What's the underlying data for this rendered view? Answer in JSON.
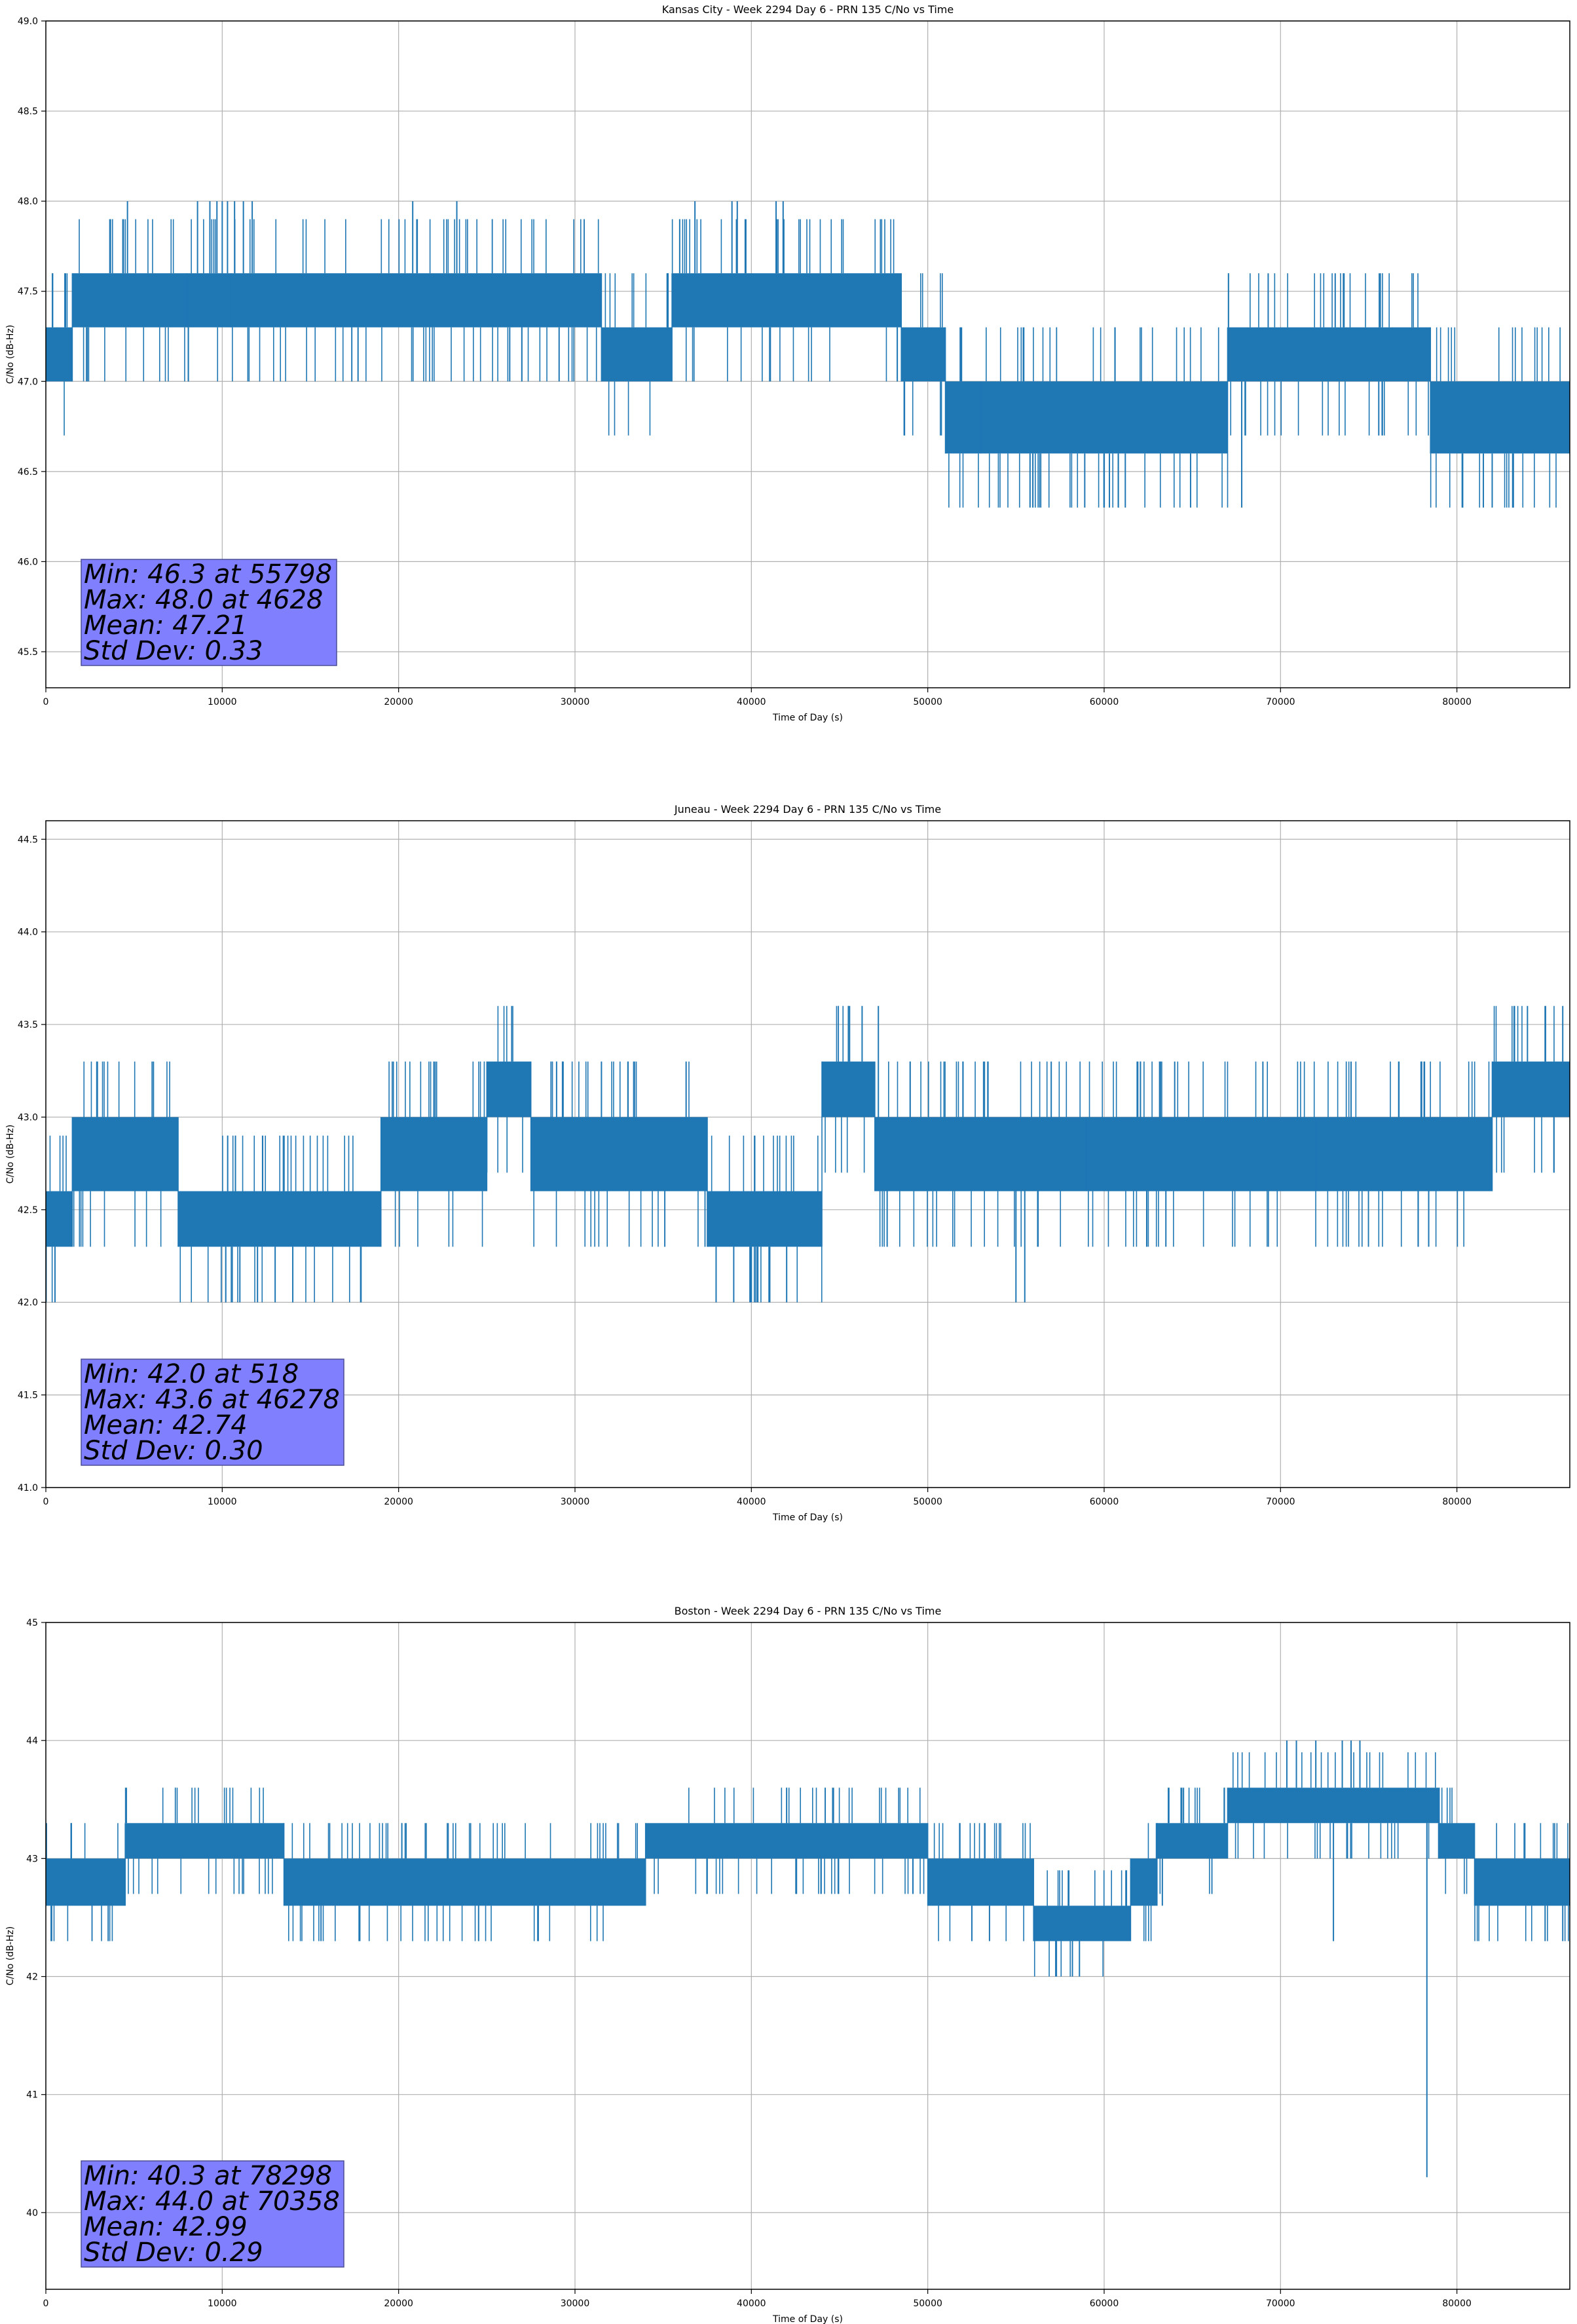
{
  "series_color": "#1f77b4",
  "stats_box_color": "#8080ff",
  "chart_data": [
    {
      "type": "line",
      "title": "Kansas City - Week 2294 Day 6 - PRN 135 C/No vs Time",
      "xlabel": "Time of Day (s)",
      "ylabel": "C/No (dB-Hz)",
      "xlim": [
        0,
        86400
      ],
      "ylim": [
        45.3,
        49.0
      ],
      "xticks": [
        0,
        10000,
        20000,
        30000,
        40000,
        50000,
        60000,
        70000,
        80000
      ],
      "yticks": [
        "45.5",
        "46.0",
        "46.5",
        "47.0",
        "47.5",
        "48.0",
        "48.5",
        "49.0"
      ],
      "grid": true,
      "quantum": 0.3,
      "stats": [
        "Min: 46.3 at 55798",
        "Max: 48.0 at 4628",
        "Mean: 47.21",
        "Std Dev: 0.33"
      ],
      "segments": [
        {
          "x": [
            0,
            1500
          ],
          "levels": [
            47.0,
            47.3
          ]
        },
        {
          "x": [
            1500,
            8000
          ],
          "levels": [
            47.3,
            47.6
          ]
        },
        {
          "x": [
            8000,
            10500
          ],
          "levels": [
            47.3,
            47.6
          ]
        },
        {
          "x": [
            10500,
            27000
          ],
          "levels": [
            47.3,
            47.6
          ]
        },
        {
          "x": [
            27000,
            31500
          ],
          "levels": [
            47.3,
            47.6
          ]
        },
        {
          "x": [
            31500,
            35500
          ],
          "levels": [
            47.0,
            47.3
          ]
        },
        {
          "x": [
            35500,
            48500
          ],
          "levels": [
            47.3,
            47.6
          ]
        },
        {
          "x": [
            48500,
            51000
          ],
          "levels": [
            47.0,
            47.3
          ]
        },
        {
          "x": [
            51000,
            53000
          ],
          "levels": [
            46.6,
            47.0
          ]
        },
        {
          "x": [
            53000,
            67000
          ],
          "levels": [
            46.6,
            47.0
          ]
        },
        {
          "x": [
            67000,
            78500
          ],
          "levels": [
            47.0,
            47.3
          ]
        },
        {
          "x": [
            78500,
            86400
          ],
          "levels": [
            46.6,
            47.0
          ]
        }
      ],
      "spikes": [
        [
          4628,
          48.0
        ],
        [
          8600,
          48.0
        ],
        [
          9300,
          48.0
        ],
        [
          9700,
          48.0
        ],
        [
          10000,
          48.0
        ],
        [
          10300,
          48.0
        ],
        [
          10700,
          48.0
        ],
        [
          11200,
          48.0
        ],
        [
          11700,
          48.0
        ],
        [
          20800,
          48.0
        ],
        [
          23300,
          48.0
        ],
        [
          36800,
          48.0
        ],
        [
          38900,
          48.0
        ],
        [
          39200,
          48.0
        ],
        [
          41400,
          48.0
        ],
        [
          41800,
          48.0
        ],
        [
          17700,
          47.0
        ],
        [
          26300,
          47.0
        ],
        [
          29100,
          47.0
        ],
        [
          55798,
          46.3
        ],
        [
          58900,
          46.3
        ],
        [
          60300,
          46.3
        ],
        [
          60800,
          46.3
        ],
        [
          61200,
          46.3
        ],
        [
          64900,
          46.3
        ],
        [
          67800,
          46.3
        ],
        [
          80300,
          46.3
        ],
        [
          81500,
          46.3
        ],
        [
          82000,
          46.3
        ],
        [
          83200,
          46.3
        ],
        [
          69300,
          47.6
        ],
        [
          73100,
          47.6
        ],
        [
          73600,
          47.6
        ],
        [
          75600,
          47.6
        ]
      ]
    },
    {
      "type": "line",
      "title": "Juneau - Week 2294 Day 6 - PRN 135 C/No vs Time",
      "xlabel": "Time of Day (s)",
      "ylabel": "C/No (dB-Hz)",
      "xlim": [
        0,
        86400
      ],
      "ylim": [
        41.0,
        44.6
      ],
      "xticks": [
        0,
        10000,
        20000,
        30000,
        40000,
        50000,
        60000,
        70000,
        80000
      ],
      "yticks": [
        "41.0",
        "41.5",
        "42.0",
        "42.5",
        "43.0",
        "43.5",
        "44.0",
        "44.5"
      ],
      "grid": true,
      "quantum": 0.3,
      "stats": [
        "Min: 42.0 at 518",
        "Max: 43.6 at 46278",
        "Mean: 42.74",
        "Std Dev: 0.30"
      ],
      "segments": [
        {
          "x": [
            0,
            1500
          ],
          "levels": [
            42.3,
            42.6
          ]
        },
        {
          "x": [
            1500,
            7500
          ],
          "levels": [
            42.6,
            43.0
          ]
        },
        {
          "x": [
            7500,
            19000
          ],
          "levels": [
            42.3,
            42.6
          ]
        },
        {
          "x": [
            19000,
            25000
          ],
          "levels": [
            42.6,
            43.0
          ]
        },
        {
          "x": [
            25000,
            27500
          ],
          "levels": [
            43.0,
            43.3
          ]
        },
        {
          "x": [
            27500,
            37500
          ],
          "levels": [
            42.6,
            43.0
          ]
        },
        {
          "x": [
            37500,
            44000
          ],
          "levels": [
            42.3,
            42.6
          ]
        },
        {
          "x": [
            44000,
            47000
          ],
          "levels": [
            43.0,
            43.3
          ]
        },
        {
          "x": [
            47000,
            59000
          ],
          "levels": [
            42.6,
            43.0
          ]
        },
        {
          "x": [
            59000,
            72000
          ],
          "levels": [
            42.6,
            43.0
          ]
        },
        {
          "x": [
            72000,
            82000
          ],
          "levels": [
            42.6,
            43.0
          ]
        },
        {
          "x": [
            82000,
            86400
          ],
          "levels": [
            43.0,
            43.3
          ]
        }
      ],
      "spikes": [
        [
          518,
          42.0
        ],
        [
          10200,
          42.0
        ],
        [
          11000,
          42.0
        ],
        [
          12000,
          42.0
        ],
        [
          13000,
          42.0
        ],
        [
          14000,
          42.0
        ],
        [
          38000,
          42.0
        ],
        [
          39000,
          42.0
        ],
        [
          40000,
          42.0
        ],
        [
          41000,
          42.0
        ],
        [
          42000,
          42.0
        ],
        [
          55000,
          42.0
        ],
        [
          55500,
          42.0
        ],
        [
          6100,
          43.3
        ],
        [
          22000,
          43.3
        ],
        [
          31500,
          43.3
        ],
        [
          33000,
          43.3
        ],
        [
          36300,
          43.3
        ],
        [
          46278,
          43.6
        ],
        [
          45500,
          43.6
        ],
        [
          47200,
          43.6
        ],
        [
          84000,
          43.6
        ],
        [
          85000,
          43.6
        ],
        [
          86000,
          43.6
        ],
        [
          49000,
          43.3
        ],
        [
          52000,
          43.3
        ],
        [
          57000,
          43.3
        ],
        [
          64000,
          43.3
        ],
        [
          69000,
          43.3
        ],
        [
          74000,
          43.3
        ],
        [
          78000,
          43.3
        ],
        [
          78400,
          42.3
        ],
        [
          63500,
          42.3
        ]
      ]
    },
    {
      "type": "line",
      "title": "Boston - Week 2294 Day 6 - PRN 135 C/No vs Time",
      "xlabel": "Time of Day (s)",
      "ylabel": "C/No (dB-Hz)",
      "xlim": [
        0,
        86400
      ],
      "ylim": [
        39.35,
        45.0
      ],
      "xticks": [
        0,
        10000,
        20000,
        30000,
        40000,
        50000,
        60000,
        70000,
        80000
      ],
      "yticks": [
        "40",
        "41",
        "42",
        "43",
        "44",
        "45"
      ],
      "grid": true,
      "quantum": 0.3,
      "stats": [
        "Min: 40.3 at 78298",
        "Max: 44.0 at 70358",
        "Mean: 42.99",
        "Std Dev: 0.29"
      ],
      "segments": [
        {
          "x": [
            0,
            4500
          ],
          "levels": [
            42.6,
            43.0
          ]
        },
        {
          "x": [
            4500,
            13500
          ],
          "levels": [
            43.0,
            43.3
          ]
        },
        {
          "x": [
            13500,
            34000
          ],
          "levels": [
            42.6,
            43.0
          ]
        },
        {
          "x": [
            34000,
            50000
          ],
          "levels": [
            43.0,
            43.3
          ]
        },
        {
          "x": [
            50000,
            56000
          ],
          "levels": [
            42.6,
            43.0
          ]
        },
        {
          "x": [
            56000,
            61500
          ],
          "levels": [
            42.3,
            42.6
          ]
        },
        {
          "x": [
            61500,
            63000
          ],
          "levels": [
            42.6,
            43.0
          ]
        },
        {
          "x": [
            63000,
            67000
          ],
          "levels": [
            43.0,
            43.3
          ]
        },
        {
          "x": [
            67000,
            79000
          ],
          "levels": [
            43.3,
            43.6
          ]
        },
        {
          "x": [
            79000,
            81000
          ],
          "levels": [
            43.0,
            43.3
          ]
        },
        {
          "x": [
            81000,
            86400
          ],
          "levels": [
            42.6,
            43.0
          ]
        }
      ],
      "spikes": [
        [
          300,
          42.3
        ],
        [
          15600,
          42.3
        ],
        [
          17800,
          42.3
        ],
        [
          52500,
          42.3
        ],
        [
          53500,
          42.3
        ],
        [
          85000,
          42.3
        ],
        [
          86000,
          42.3
        ],
        [
          58200,
          42.0
        ],
        [
          58600,
          42.0
        ],
        [
          70358,
          44.0
        ],
        [
          70900,
          44.0
        ],
        [
          72000,
          44.0
        ],
        [
          73500,
          44.0
        ],
        [
          74000,
          44.0
        ],
        [
          74500,
          44.0
        ],
        [
          42000,
          43.6
        ],
        [
          64500,
          43.6
        ],
        [
          78298,
          40.3
        ],
        [
          73000,
          42.3
        ],
        [
          63300,
          42.6
        ]
      ]
    }
  ]
}
